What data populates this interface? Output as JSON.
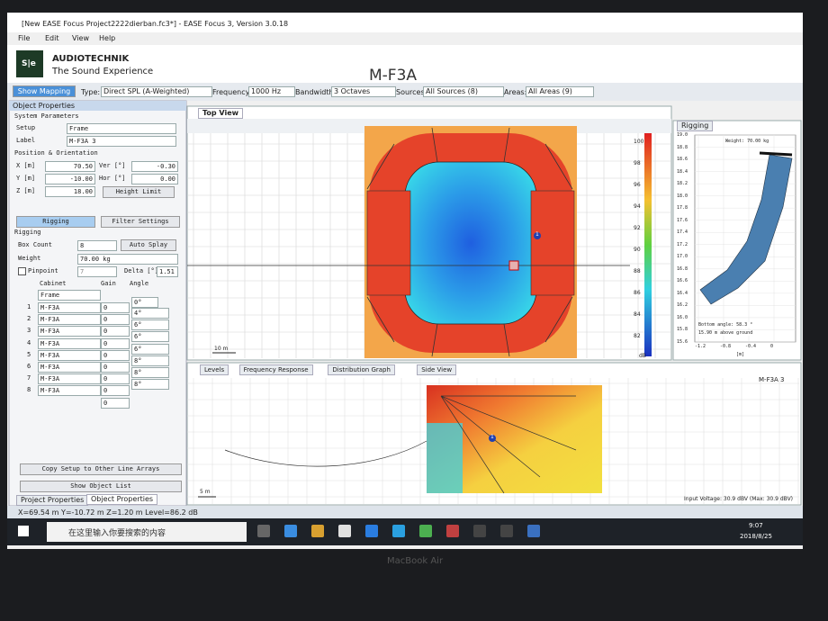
{
  "window": {
    "title": "[New EASE Focus Project2222dierban.fc3*] - EASE Focus 3, Version 3.0.18",
    "menu": [
      "File",
      "Edit",
      "View",
      "Help"
    ]
  },
  "brand": {
    "logo": "S|e",
    "name": "AUDIOTECHNIK",
    "tagline": "The Sound Experience"
  },
  "header": {
    "title": "M-F3A"
  },
  "toolbar": {
    "show_mapping": "Show Mapping",
    "type_label": "Type:",
    "type": "Direct SPL (A-Weighted)",
    "frequency_label": "Frequency:",
    "frequency": "1000 Hz",
    "bandwidth_label": "Bandwidth:",
    "bandwidth": "3 Octaves",
    "sources_label": "Sources:",
    "sources": "All Sources (8)",
    "areas_label": "Areas:",
    "areas": "All Areas (9)"
  },
  "object_properties": {
    "title": "Object Properties",
    "system_parameters": "System Parameters",
    "setup_label": "Setup",
    "setup": "Frame",
    "label_label": "Label",
    "label": "M-F3A 3",
    "position_heading": "Position & Orientation",
    "x_label": "X [m]",
    "x": "70.50",
    "y_label": "Y [m]",
    "y": "-10.00",
    "z_label": "Z [m]",
    "z": "18.00",
    "ver_label": "Ver [°]",
    "ver": "-0.30",
    "hor_label": "Hor [°]",
    "hor": "0.00",
    "height_limit": "Height Limit",
    "tabs": [
      "Rigging",
      "Filter Settings"
    ],
    "rigging_heading": "Rigging",
    "box_count_label": "Box Count",
    "box_count": "8",
    "auto_splay": "Auto Splay",
    "weight_label": "Weight",
    "weight": "70.00 kg",
    "pinpoint_label": "Pinpoint",
    "pinpoint": "7",
    "delta_label": "Delta [°]",
    "delta": "1.51",
    "columns": [
      "Cabinet",
      "Gain",
      "Angle"
    ],
    "frame_row": {
      "cabinet": "Frame",
      "angle": "0°"
    },
    "rows": [
      {
        "index": "1",
        "cabinet": "M-F3A",
        "gain": "0",
        "angle": "4°"
      },
      {
        "index": "2",
        "cabinet": "M-F3A",
        "gain": "0",
        "angle": "6°"
      },
      {
        "index": "3",
        "cabinet": "M-F3A",
        "gain": "0",
        "angle": "6°"
      },
      {
        "index": "4",
        "cabinet": "M-F3A",
        "gain": "0",
        "angle": "6°"
      },
      {
        "index": "5",
        "cabinet": "M-F3A",
        "gain": "0",
        "angle": "8°"
      },
      {
        "index": "6",
        "cabinet": "M-F3A",
        "gain": "0",
        "angle": "8°"
      },
      {
        "index": "7",
        "cabinet": "M-F3A",
        "gain": "0",
        "angle": "8°"
      },
      {
        "index": "8",
        "cabinet": "M-F3A",
        "gain": "0"
      }
    ],
    "last_gain": "0",
    "copy_setup": "Copy Setup to Other Line Arrays",
    "show_list": "Show Object List"
  },
  "bottom_tabs": [
    "Project Properties",
    "Object Properties"
  ],
  "status": "X=69.54 m Y=-10.72 m Z=1.20 m Level=86.2 dB",
  "top_view": {
    "tab": "Top View",
    "scale": "10 m",
    "legend_ticks": [
      "100",
      "98",
      "96",
      "94",
      "92",
      "90",
      "88",
      "86",
      "84",
      "82"
    ],
    "legend_unit": "dB",
    "marker": "1"
  },
  "rigging_view": {
    "tab": "Rigging",
    "weight": "Weight: 70.00 kg",
    "yticks": [
      "19.0",
      "18.8",
      "18.6",
      "18.4",
      "18.2",
      "18.0",
      "17.8",
      "17.6",
      "17.4",
      "17.2",
      "17.0",
      "16.8",
      "16.6",
      "16.4",
      "16.2",
      "16.0",
      "15.8",
      "15.6"
    ],
    "xticks": [
      "-1.2",
      "-0.8",
      "-0.4",
      "0"
    ],
    "x_unit": "[m]",
    "bottom_angle": "Bottom angle: 58.3 °",
    "height": "15.90 m above ground"
  },
  "lower_panel": {
    "tabs": [
      "Levels",
      "Frequency Response",
      "Distribution Graph",
      "Side View"
    ],
    "object": "M-F3A 3",
    "scale": "5 m",
    "input_voltage": "Input Voltage: 30.9 dBV (Max: 30.9 dBV)",
    "marker": "1"
  },
  "taskbar": {
    "search": "在这里输入你要搜索的内容",
    "time": "9:07",
    "date": "2018/8/25"
  },
  "bezel": "MacBook Air"
}
